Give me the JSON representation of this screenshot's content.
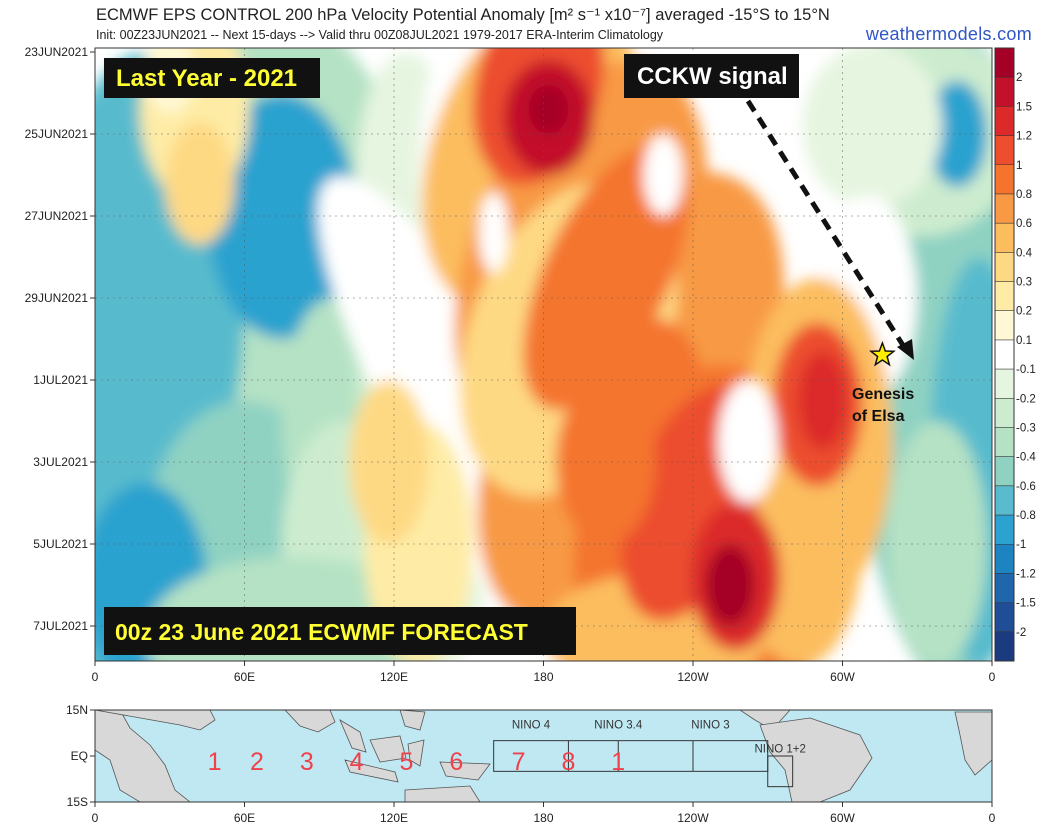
{
  "header": {
    "title": "ECMWF EPS CONTROL 200 hPa Velocity Potential Anomaly [m² s⁻¹ x10⁻⁷] averaged -15°S to 15°N",
    "subtitle": "Init: 00Z23JUN2021 -- Next 15-days --> Valid thru 00Z08JUL2021 1979-2017 ERA-Interim Climatology",
    "brand": "weathermodels.com"
  },
  "annotations": {
    "last_year": "Last Year - 2021",
    "cckw": "CCKW signal",
    "genesis_line1": "Genesis",
    "genesis_line2": "of Elsa",
    "forecast": "00z 23 June 2021 ECWMF FORECAST"
  },
  "colors": {
    "positive_max": "#a50026",
    "positive_mid": "#f4742e",
    "positive_low": "#fee79a",
    "neutral": "#ffffff",
    "negative_low": "#b9e3c8",
    "negative_mid": "#2ba2cf",
    "negative_max": "#1f4e97",
    "banner_bg": "#111111",
    "banner_yellow": "#ffff33",
    "brand": "#2f55c7",
    "phase_numbers": "#f0404a"
  },
  "chart_data": [
    {
      "type": "heatmap",
      "title": "ECMWF EPS CONTROL 200 hPa Velocity Potential Anomaly",
      "xlabel": "",
      "ylabel": "",
      "x_ticks": [
        "0",
        "60E",
        "120E",
        "180",
        "120W",
        "60W",
        "0"
      ],
      "x_tick_lon": [
        0,
        60,
        120,
        180,
        240,
        300,
        360
      ],
      "y_ticks": [
        "23JUN2021",
        "25JUN2021",
        "27JUN2021",
        "29JUN2021",
        "1JUL2021",
        "3JUL2021",
        "5JUL2021",
        "7JUL2021"
      ],
      "y_tick_day": [
        0,
        2,
        4,
        6,
        8,
        10,
        12,
        14
      ],
      "xlim": [
        0,
        360
      ],
      "ylim_days": [
        0,
        15
      ],
      "colorbar": {
        "levels": [
          "2",
          "1.5",
          "1.2",
          "1",
          "0.8",
          "0.6",
          "0.4",
          "0.3",
          "0.2",
          "0.1",
          "-0.1",
          "-0.2",
          "-0.3",
          "-0.4",
          "-0.6",
          "-0.8",
          "-1",
          "-1.2",
          "-1.5",
          "-2"
        ],
        "colors": [
          "#a50026",
          "#c3112b",
          "#dc2a2a",
          "#ec4e2e",
          "#f4742e",
          "#f89a45",
          "#fcbd5f",
          "#fed984",
          "#feeca6",
          "#fff8d4",
          "#ffffff",
          "#e6f5e0",
          "#cdeccf",
          "#b5e2c4",
          "#8fd2c2",
          "#59bbcd",
          "#2ba2cf",
          "#1e84c1",
          "#1f66ad",
          "#1f4e97",
          "#1a3b80"
        ]
      },
      "features": [
        {
          "lon": 180,
          "day": 1.5,
          "value": 2.0
        },
        {
          "lon": 255,
          "day": 12.6,
          "value": 2.0
        },
        {
          "lon": 290,
          "day": 8.5,
          "value": 1.2
        },
        {
          "lon": 208,
          "day": 5.0,
          "value": 0.8
        },
        {
          "lon": 75,
          "day": 4.0,
          "value": -1.0
        },
        {
          "lon": 345,
          "day": 3.5,
          "value": -1.0
        },
        {
          "lon": 25,
          "day": 13.0,
          "value": -1.0
        },
        {
          "lon": 40,
          "day": 1.0,
          "value": 0.4
        }
      ],
      "genesis_point": {
        "lon": 316,
        "day": 8.0
      }
    },
    {
      "type": "map",
      "y_ticks": [
        "15N",
        "EQ",
        "15S"
      ],
      "x_ticks": [
        "0",
        "60E",
        "120E",
        "180",
        "120W",
        "60W",
        "0"
      ],
      "regions": [
        {
          "label": "NINO 4",
          "lon_range": [
            160,
            210
          ]
        },
        {
          "label": "NINO 3.4",
          "lon_range": [
            190,
            240
          ]
        },
        {
          "label": "NINO 3",
          "lon_range": [
            210,
            270
          ]
        },
        {
          "label": "NINO 1+2",
          "lon_range": [
            270,
            280
          ]
        }
      ],
      "phases": [
        "1",
        "2",
        "3",
        "4",
        "5",
        "6",
        "7",
        "8",
        "1"
      ]
    }
  ]
}
